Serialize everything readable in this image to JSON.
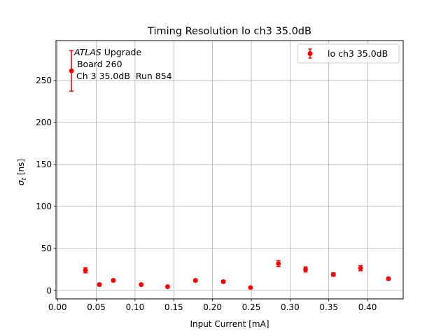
{
  "chart_data": {
    "type": "scatter",
    "title": "Timing Resolution lo ch3 35.0dB",
    "xlabel": "Input Current [mA]",
    "ylabel_main": "σ",
    "ylabel_sub": "t",
    "ylabel_unit": " [ns]",
    "xlim": [
      -0.002,
      0.446
    ],
    "ylim": [
      -10,
      297
    ],
    "x_ticks": [
      0.0,
      0.05,
      0.1,
      0.15,
      0.2,
      0.25,
      0.3,
      0.35,
      0.4
    ],
    "x_tick_labels": [
      "0.00",
      "0.05",
      "0.10",
      "0.15",
      "0.20",
      "0.25",
      "0.30",
      "0.35",
      "0.40"
    ],
    "y_ticks": [
      0,
      50,
      100,
      150,
      200,
      250
    ],
    "y_tick_labels": [
      "0",
      "50",
      "100",
      "150",
      "200",
      "250"
    ],
    "grid": true,
    "legend_position": "top-right",
    "series": [
      {
        "name": "lo ch3 35.0dB",
        "color": "#ff0000",
        "x": [
          0.018,
          0.036,
          0.054,
          0.072,
          0.108,
          0.142,
          0.178,
          0.214,
          0.249,
          0.285,
          0.32,
          0.356,
          0.391,
          0.427
        ],
        "y": [
          261,
          24,
          7,
          12,
          7,
          4.5,
          12,
          10.5,
          3.5,
          32,
          25,
          19,
          26.5,
          14
        ],
        "yerr": [
          24,
          3,
          1.5,
          1.5,
          1,
          1,
          1.5,
          1.5,
          1,
          3.5,
          3,
          2,
          3,
          1.5
        ]
      }
    ],
    "annotation": {
      "line1_italic": "ATLAS",
      "line1_rest": " Upgrade",
      "line2": " Board 260",
      "line3": "Ch 3 35.0dB  Run 854"
    }
  }
}
